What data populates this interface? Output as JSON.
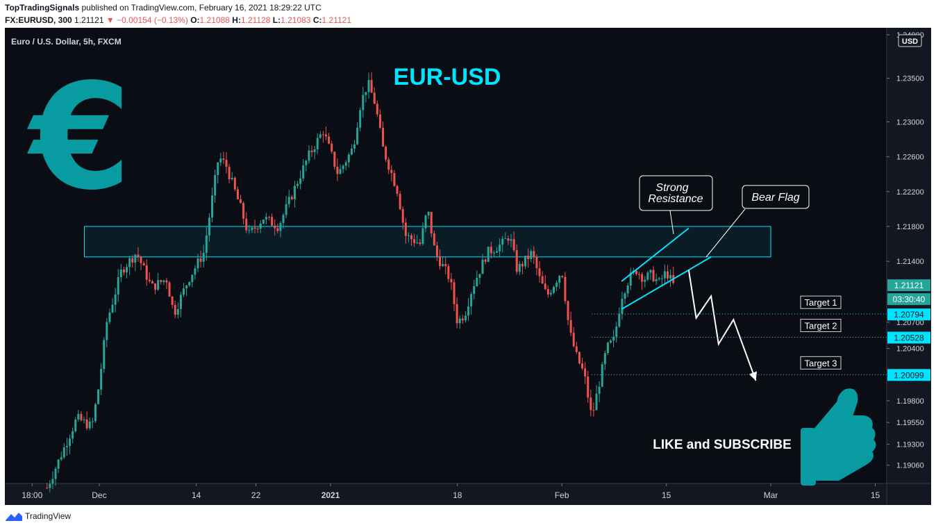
{
  "header": {
    "publisher": "TopTradingSignals",
    "published_text": "published on TradingView.com, February 16, 2021 18:29:22 UTC",
    "symbol": "FX:EURUSD, 300",
    "last": "1.21121",
    "change": "▼ −0.00154 (−0.13%)",
    "o_label": "O:",
    "o_value": "1.21088",
    "h_label": "H:",
    "h_value": "1.21128",
    "l_label": "L:",
    "l_value": "1.21083",
    "c_label": "C:",
    "c_value": "1.21121"
  },
  "colors": {
    "background": "#131722",
    "up": "#26a69a",
    "down": "#ef5350",
    "accent": "#00e5ff",
    "price_badge": "#26a69a",
    "euro_sign": "#089ba1"
  },
  "chart_data": {
    "type": "candlestick",
    "title": "Euro / U.S. Dollar, 5h, FXCM",
    "currency": "USD",
    "ylim": [
      1.1885,
      1.2408
    ],
    "y_ticks": [
      "1.24000",
      "1.23500",
      "1.23000",
      "1.22600",
      "1.22200",
      "1.21800",
      "1.21400",
      "1.20700",
      "1.20400",
      "1.19800",
      "1.19550",
      "1.19300",
      "1.19060"
    ],
    "x_ticks": [
      "18:00",
      "Dec",
      "14",
      "22",
      "2021",
      "18",
      "Feb",
      "15",
      "Mar",
      "15"
    ],
    "series_points": [
      {
        "date": "2020-11-24",
        "price": 1.188
      },
      {
        "date": "2020-11-26",
        "price": 1.192
      },
      {
        "date": "2020-11-28",
        "price": 1.196
      },
      {
        "date": "2020-11-30",
        "price": 1.195
      },
      {
        "date": "2020-12-01",
        "price": 1.2
      },
      {
        "date": "2020-12-02",
        "price": 1.207
      },
      {
        "date": "2020-12-04",
        "price": 1.213
      },
      {
        "date": "2020-12-06",
        "price": 1.215
      },
      {
        "date": "2020-12-08",
        "price": 1.211
      },
      {
        "date": "2020-12-10",
        "price": 1.212
      },
      {
        "date": "2020-12-11",
        "price": 1.208
      },
      {
        "date": "2020-12-13",
        "price": 1.212
      },
      {
        "date": "2020-12-15",
        "price": 1.215
      },
      {
        "date": "2020-12-17",
        "price": 1.226
      },
      {
        "date": "2020-12-18",
        "price": 1.225
      },
      {
        "date": "2020-12-20",
        "price": 1.22
      },
      {
        "date": "2020-12-21",
        "price": 1.217
      },
      {
        "date": "2020-12-23",
        "price": 1.219
      },
      {
        "date": "2020-12-25",
        "price": 1.218
      },
      {
        "date": "2020-12-27",
        "price": 1.222
      },
      {
        "date": "2020-12-29",
        "price": 1.226
      },
      {
        "date": "2020-12-31",
        "price": 1.229
      },
      {
        "date": "2021-01-02",
        "price": 1.224
      },
      {
        "date": "2021-01-04",
        "price": 1.227
      },
      {
        "date": "2021-01-05",
        "price": 1.232
      },
      {
        "date": "2021-01-06",
        "price": 1.2345
      },
      {
        "date": "2021-01-07",
        "price": 1.232
      },
      {
        "date": "2021-01-08",
        "price": 1.227
      },
      {
        "date": "2021-01-10",
        "price": 1.222
      },
      {
        "date": "2021-01-11",
        "price": 1.217
      },
      {
        "date": "2021-01-13",
        "price": 1.216
      },
      {
        "date": "2021-01-14",
        "price": 1.22
      },
      {
        "date": "2021-01-15",
        "price": 1.215
      },
      {
        "date": "2021-01-17",
        "price": 1.212
      },
      {
        "date": "2021-01-18",
        "price": 1.207
      },
      {
        "date": "2021-01-19",
        "price": 1.208
      },
      {
        "date": "2021-01-20",
        "price": 1.211
      },
      {
        "date": "2021-01-22",
        "price": 1.215
      },
      {
        "date": "2021-01-24",
        "price": 1.216
      },
      {
        "date": "2021-01-25",
        "price": 1.217
      },
      {
        "date": "2021-01-26",
        "price": 1.213
      },
      {
        "date": "2021-01-28",
        "price": 1.215
      },
      {
        "date": "2021-01-29",
        "price": 1.212
      },
      {
        "date": "2021-01-30",
        "price": 1.21
      },
      {
        "date": "2021-02-01",
        "price": 1.213
      },
      {
        "date": "2021-02-02",
        "price": 1.206
      },
      {
        "date": "2021-02-03",
        "price": 1.203
      },
      {
        "date": "2021-02-04",
        "price": 1.201
      },
      {
        "date": "2021-02-05",
        "price": 1.196
      },
      {
        "date": "2021-02-06",
        "price": 1.2
      },
      {
        "date": "2021-02-07",
        "price": 1.204
      },
      {
        "date": "2021-02-08",
        "price": 1.205
      },
      {
        "date": "2021-02-09",
        "price": 1.21
      },
      {
        "date": "2021-02-10",
        "price": 1.212
      },
      {
        "date": "2021-02-11",
        "price": 1.213
      },
      {
        "date": "2021-02-12",
        "price": 1.212
      },
      {
        "date": "2021-02-13",
        "price": 1.2125
      },
      {
        "date": "2021-02-14",
        "price": 1.2115
      },
      {
        "date": "2021-02-15",
        "price": 1.2128
      },
      {
        "date": "2021-02-16",
        "price": 1.2112
      }
    ],
    "resistance_zone": {
      "start": "2020-11-29",
      "end": "2021-03-01",
      "low": 1.2145,
      "high": 1.218
    },
    "bear_flag": {
      "upper": [
        {
          "date": "2021-02-09",
          "price": 1.2117
        },
        {
          "date": "2021-02-18",
          "price": 1.2178
        }
      ],
      "lower": [
        {
          "date": "2021-02-09",
          "price": 1.2085
        },
        {
          "date": "2021-02-21",
          "price": 1.2145
        }
      ]
    },
    "projection": [
      {
        "date": "2021-02-18",
        "price": 1.213
      },
      {
        "date": "2021-02-19",
        "price": 1.2075
      },
      {
        "date": "2021-02-21",
        "price": 1.21
      },
      {
        "date": "2021-02-22",
        "price": 1.2045
      },
      {
        "date": "2021-02-24",
        "price": 1.2073
      },
      {
        "date": "2021-02-27",
        "price": 1.2003
      }
    ],
    "targets": [
      {
        "label": "Target 1",
        "price": 1.20794,
        "badge": "1.20794"
      },
      {
        "label": "Target 2",
        "price": 1.20528,
        "badge": "1.20528"
      },
      {
        "label": "Target 3",
        "price": 1.20099,
        "badge": "1.20099"
      }
    ],
    "current_price": {
      "price": 1.21121,
      "label": "1.21121",
      "countdown": "03:30:40"
    },
    "annotations": {
      "heading": "EUR-USD",
      "strong_resistance_line1": "Strong",
      "strong_resistance_line2": "Resistance",
      "bear_flag": "Bear Flag",
      "cta": "LIKE and SUBSCRIBE"
    }
  },
  "footer": {
    "brand": "TradingView"
  }
}
